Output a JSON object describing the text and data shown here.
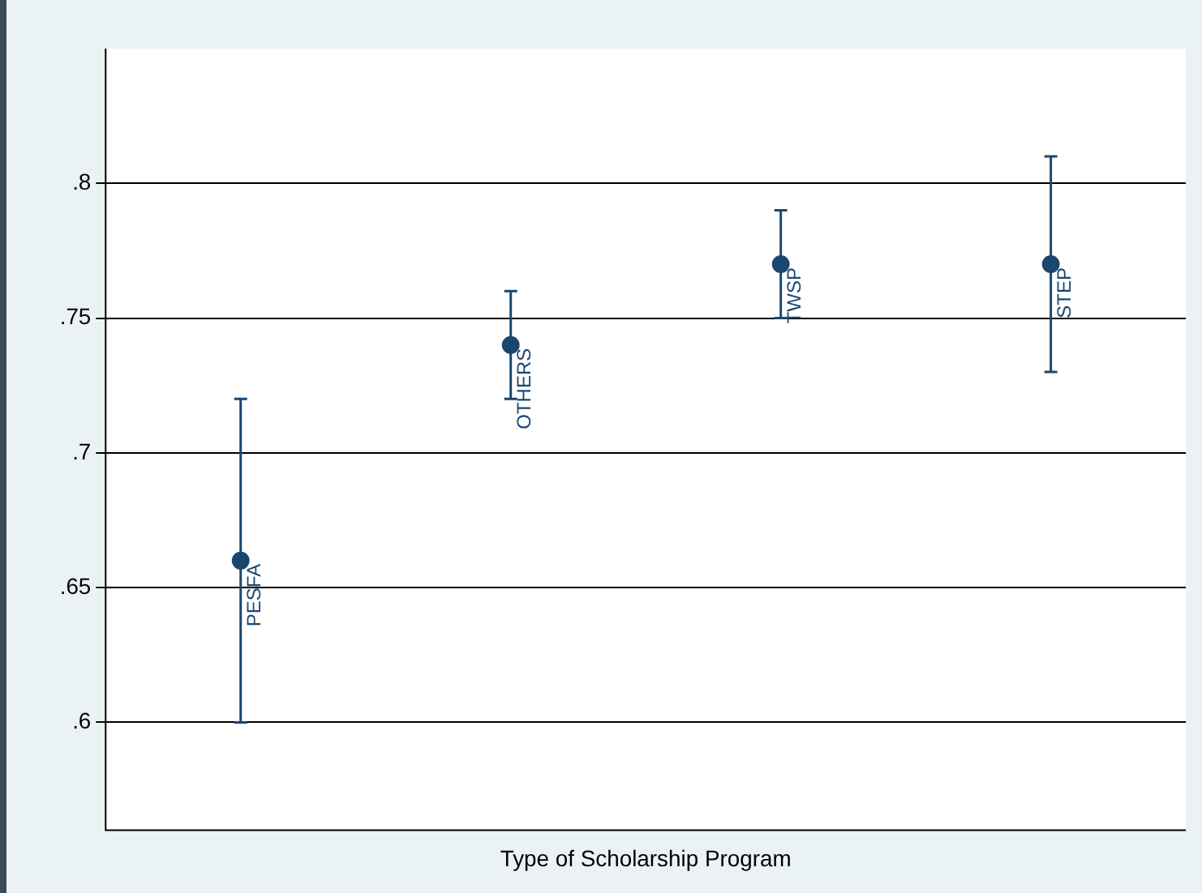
{
  "chart_data": {
    "type": "scatter",
    "xlabel": "Type of Scholarship Program",
    "categories": [
      "PESFA",
      "OTHERS",
      "TWSP",
      "STEP"
    ],
    "series": [
      {
        "color": "#1a476f",
        "values": [
          0.66,
          0.74,
          0.77,
          0.77
        ],
        "errors": [
          [
            0.6,
            0.72
          ],
          [
            0.72,
            0.76
          ],
          [
            0.75,
            0.79
          ],
          [
            0.73,
            0.81
          ]
        ]
      }
    ],
    "ylim": [
      0.56,
      0.85
    ],
    "yticks": [
      {
        "value": 0.6,
        "label": ".6"
      },
      {
        "value": 0.65,
        "label": ".65"
      },
      {
        "value": 0.7,
        "label": ".7"
      },
      {
        "value": 0.75,
        "label": ".75"
      },
      {
        "value": 0.8,
        "label": ".8"
      }
    ],
    "grid": "y",
    "legend": false,
    "marker": "circle",
    "tick_labels": "y"
  }
}
